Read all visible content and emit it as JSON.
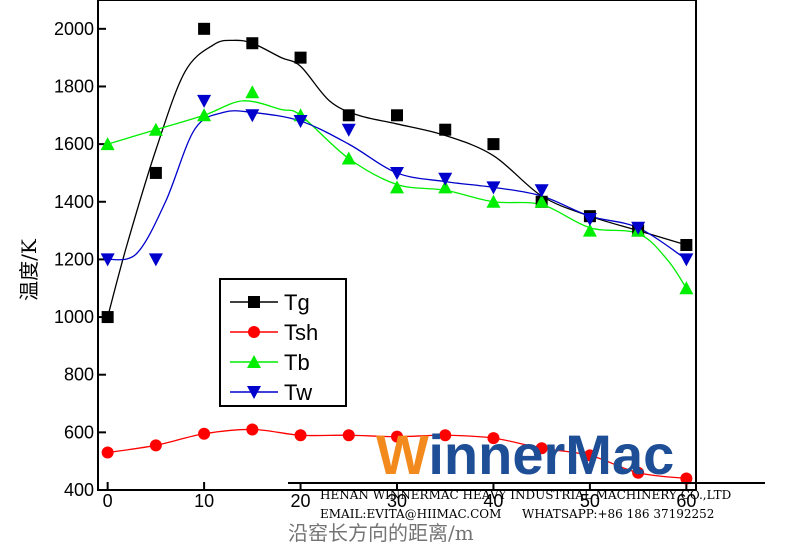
{
  "chart_data": {
    "type": "line",
    "xlabel": "沿窑长方向的距离/m",
    "ylabel": "温度/K",
    "xlim": [
      -1,
      61
    ],
    "ylim": [
      400,
      2100
    ],
    "xticks": [
      0,
      10,
      20,
      30,
      40,
      50,
      60
    ],
    "yticks": [
      400,
      600,
      800,
      1000,
      1200,
      1400,
      1600,
      1800,
      2000
    ],
    "grid": false,
    "legend_position": "center-left",
    "series": [
      {
        "name": "Tg",
        "color": "#000000",
        "marker": "square",
        "x": [
          0,
          5,
          10,
          15,
          20,
          25,
          30,
          35,
          40,
          45,
          50,
          55,
          60
        ],
        "y": [
          1000,
          1500,
          2000,
          1950,
          1900,
          1700,
          1700,
          1650,
          1600,
          1400,
          1350,
          1300,
          1250
        ],
        "curve": [
          [
            0,
            1000
          ],
          [
            2,
            1250
          ],
          [
            5,
            1580
          ],
          [
            8,
            1850
          ],
          [
            11,
            1945
          ],
          [
            13,
            1960
          ],
          [
            15,
            1950
          ],
          [
            18,
            1900
          ],
          [
            20,
            1870
          ],
          [
            23,
            1750
          ],
          [
            26,
            1700
          ],
          [
            30,
            1670
          ],
          [
            35,
            1630
          ],
          [
            40,
            1560
          ],
          [
            45,
            1420
          ],
          [
            50,
            1350
          ],
          [
            55,
            1300
          ],
          [
            60,
            1250
          ]
        ]
      },
      {
        "name": "Tsh",
        "color": "#ff0000",
        "marker": "circle",
        "x": [
          0,
          5,
          10,
          15,
          20,
          25,
          30,
          35,
          40,
          45,
          50,
          55,
          60
        ],
        "y": [
          530,
          555,
          595,
          610,
          590,
          590,
          585,
          590,
          580,
          545,
          520,
          460,
          440
        ],
        "curve": [
          [
            0,
            530
          ],
          [
            5,
            555
          ],
          [
            10,
            595
          ],
          [
            15,
            610
          ],
          [
            20,
            590
          ],
          [
            25,
            590
          ],
          [
            30,
            585
          ],
          [
            35,
            590
          ],
          [
            40,
            580
          ],
          [
            45,
            545
          ],
          [
            50,
            520
          ],
          [
            55,
            460
          ],
          [
            60,
            440
          ]
        ]
      },
      {
        "name": "Tb",
        "color": "#00ee00",
        "marker": "triangle-up",
        "x": [
          0,
          5,
          10,
          15,
          20,
          25,
          30,
          35,
          40,
          45,
          50,
          55,
          60
        ],
        "y": [
          1600,
          1650,
          1700,
          1780,
          1700,
          1550,
          1450,
          1450,
          1400,
          1400,
          1300,
          1300,
          1100
        ],
        "curve": [
          [
            0,
            1600
          ],
          [
            5,
            1650
          ],
          [
            10,
            1700
          ],
          [
            14,
            1750
          ],
          [
            18,
            1720
          ],
          [
            20,
            1700
          ],
          [
            25,
            1550
          ],
          [
            30,
            1460
          ],
          [
            35,
            1440
          ],
          [
            40,
            1400
          ],
          [
            45,
            1390
          ],
          [
            50,
            1310
          ],
          [
            55,
            1290
          ],
          [
            58,
            1200
          ],
          [
            60,
            1100
          ]
        ]
      },
      {
        "name": "Tw",
        "color": "#0000cc",
        "marker": "triangle-down",
        "x": [
          0,
          5,
          10,
          15,
          20,
          25,
          30,
          35,
          40,
          45,
          50,
          55,
          60
        ],
        "y": [
          1200,
          1200,
          1750,
          1700,
          1680,
          1650,
          1500,
          1480,
          1450,
          1440,
          1340,
          1310,
          1200
        ],
        "curve": [
          [
            0,
            1200
          ],
          [
            3,
            1220
          ],
          [
            6,
            1400
          ],
          [
            9,
            1650
          ],
          [
            12,
            1710
          ],
          [
            15,
            1710
          ],
          [
            20,
            1680
          ],
          [
            25,
            1600
          ],
          [
            30,
            1500
          ],
          [
            35,
            1470
          ],
          [
            40,
            1450
          ],
          [
            45,
            1420
          ],
          [
            50,
            1350
          ],
          [
            55,
            1310
          ],
          [
            60,
            1200
          ]
        ]
      }
    ]
  },
  "watermark": {
    "logo_prefix": "W",
    "logo_mid": "inner",
    "logo_suffix": "Mac",
    "company": "HENAN WINNERMAC HEAVY INDUSTRIAL MACHINERY CO.,LTD",
    "email": "EMAIL:EVITA@HIIMAC.COM",
    "whatsapp": "WHATSAPP:+86 186 37192252",
    "colors": {
      "orange": "#f28a1e",
      "blue": "#1d4e96"
    }
  }
}
